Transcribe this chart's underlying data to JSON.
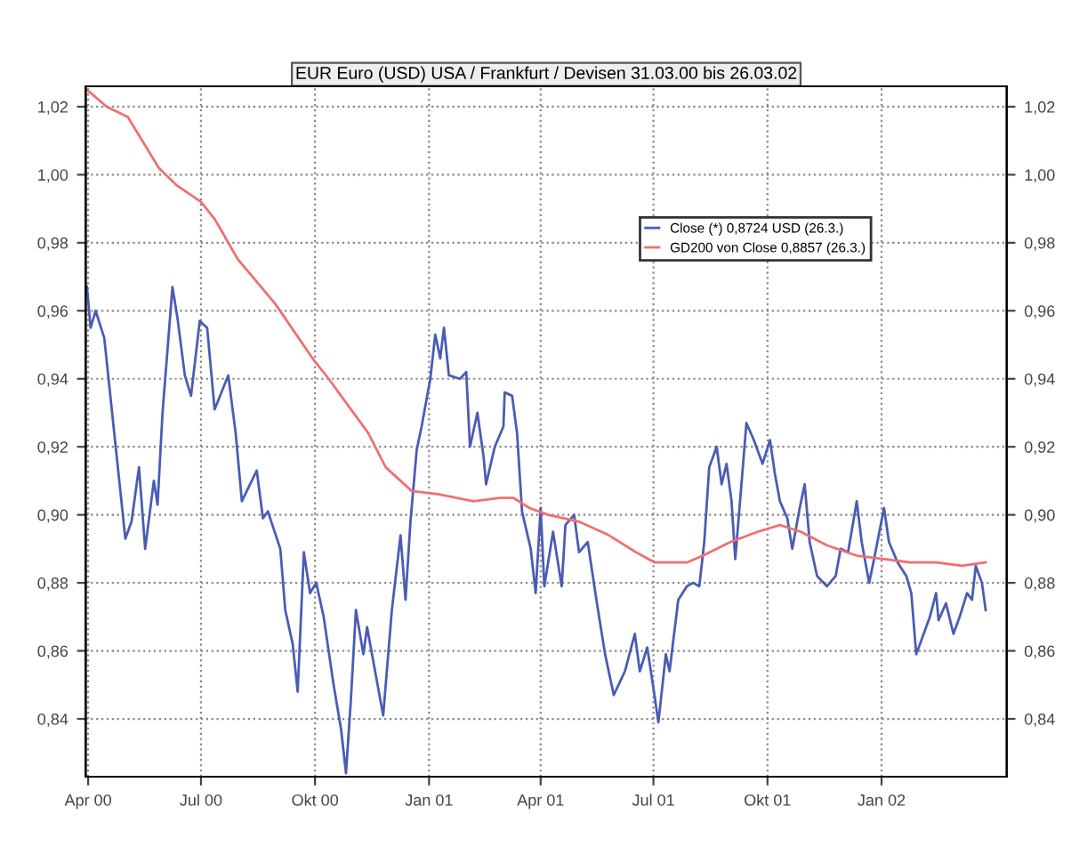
{
  "chart_data": {
    "type": "line",
    "title": "EUR Euro (USD) USA / Frankfurt / Devisen 31.03.00 bis 26.03.02",
    "xlim": [
      "2000-03-30",
      "2002-04-12"
    ],
    "xticks": [
      {
        "value": "2000-04-01",
        "label": "Apr 00"
      },
      {
        "value": "2000-07-01",
        "label": "Jul 00"
      },
      {
        "value": "2000-10-01",
        "label": "Okt 00"
      },
      {
        "value": "2001-01-01",
        "label": "Jan 01"
      },
      {
        "value": "2001-04-01",
        "label": "Apr 01"
      },
      {
        "value": "2001-07-01",
        "label": "Jul 01"
      },
      {
        "value": "2001-10-01",
        "label": "Okt 01"
      },
      {
        "value": "2002-01-01",
        "label": "Jan 02"
      }
    ],
    "ylim": [
      0.823,
      1.026
    ],
    "yticks": [
      {
        "value": 0.84,
        "label": "0,84"
      },
      {
        "value": 0.86,
        "label": "0,86"
      },
      {
        "value": 0.88,
        "label": "0,88"
      },
      {
        "value": 0.9,
        "label": "0,90"
      },
      {
        "value": 0.92,
        "label": "0,92"
      },
      {
        "value": 0.94,
        "label": "0,94"
      },
      {
        "value": 0.96,
        "label": "0,96"
      },
      {
        "value": 0.98,
        "label": "0,98"
      },
      {
        "value": 1.0,
        "label": "1,00"
      },
      {
        "value": 1.02,
        "label": "1,02"
      }
    ],
    "y2lim": [
      0.823,
      1.026
    ],
    "y2ticks": [
      {
        "value": 0.84,
        "label": "0,84"
      },
      {
        "value": 0.86,
        "label": "0,86"
      },
      {
        "value": 0.88,
        "label": "0,88"
      },
      {
        "value": 0.9,
        "label": "0,90"
      },
      {
        "value": 0.92,
        "label": "0,92"
      },
      {
        "value": 0.94,
        "label": "0,94"
      },
      {
        "value": 0.96,
        "label": "0,96"
      },
      {
        "value": 0.98,
        "label": "0,98"
      },
      {
        "value": 1.0,
        "label": "1,00"
      },
      {
        "value": 1.02,
        "label": "1,02"
      }
    ],
    "grid": true,
    "legend": "top right",
    "line_style": "solid",
    "series": [
      {
        "name": "Close (*) 0,8724 USD (26.3.)",
        "color": "#4a5cb4",
        "x": [
          "2000-03-31",
          "2000-04-03",
          "2000-04-07",
          "2000-04-14",
          "2000-05-01",
          "2000-05-06",
          "2000-05-12",
          "2000-05-17",
          "2000-05-24",
          "2000-05-27",
          "2000-05-31",
          "2000-06-08",
          "2000-06-12",
          "2000-06-18",
          "2000-06-23",
          "2000-06-30",
          "2000-07-06",
          "2000-07-12",
          "2000-07-23",
          "2000-07-29",
          "2000-08-03",
          "2000-08-15",
          "2000-08-20",
          "2000-08-24",
          "2000-09-03",
          "2000-09-07",
          "2000-09-13",
          "2000-09-17",
          "2000-09-22",
          "2000-09-27",
          "2000-10-02",
          "2000-10-08",
          "2000-10-16",
          "2000-10-22",
          "2000-10-26",
          "2000-10-30",
          "2000-11-03",
          "2000-11-09",
          "2000-11-12",
          "2000-11-16",
          "2000-11-25",
          "2000-12-02",
          "2000-12-09",
          "2000-12-13",
          "2000-12-17",
          "2000-12-22",
          "2000-12-26",
          "2001-01-02",
          "2001-01-06",
          "2001-01-10",
          "2001-01-13",
          "2001-01-17",
          "2001-01-26",
          "2001-01-31",
          "2001-02-03",
          "2001-02-09",
          "2001-02-14",
          "2001-02-16",
          "2001-02-23",
          "2001-03-02",
          "2001-03-03",
          "2001-03-09",
          "2001-03-13",
          "2001-03-17",
          "2001-03-24",
          "2001-03-28",
          "2001-04-01",
          "2001-04-04",
          "2001-04-11",
          "2001-04-18",
          "2001-04-21",
          "2001-04-28",
          "2001-05-02",
          "2001-05-09",
          "2001-05-16",
          "2001-05-23",
          "2001-05-30",
          "2001-06-08",
          "2001-06-16",
          "2001-06-20",
          "2001-06-26",
          "2001-07-01",
          "2001-07-05",
          "2001-07-11",
          "2001-07-14",
          "2001-07-21",
          "2001-07-28",
          "2001-08-02",
          "2001-08-07",
          "2001-08-11",
          "2001-08-15",
          "2001-08-21",
          "2001-08-25",
          "2001-08-29",
          "2001-09-02",
          "2001-09-05",
          "2001-09-10",
          "2001-09-14",
          "2001-09-20",
          "2001-09-27",
          "2001-10-03",
          "2001-10-07",
          "2001-10-11",
          "2001-10-17",
          "2001-10-21",
          "2001-10-27",
          "2001-10-31",
          "2001-11-04",
          "2001-11-10",
          "2001-11-18",
          "2001-11-25",
          "2001-11-29",
          "2001-12-05",
          "2001-12-12",
          "2001-12-16",
          "2001-12-22",
          "2001-12-26",
          "2002-01-03",
          "2002-01-07",
          "2002-01-14",
          "2002-01-21",
          "2002-01-25",
          "2002-01-29",
          "2002-02-04",
          "2002-02-09",
          "2002-02-14",
          "2002-02-16",
          "2002-02-22",
          "2002-02-28",
          "2002-03-05",
          "2002-03-11",
          "2002-03-15",
          "2002-03-18",
          "2002-03-23",
          "2002-03-26"
        ],
        "values": [
          0.967,
          0.955,
          0.96,
          0.952,
          0.893,
          0.898,
          0.914,
          0.89,
          0.91,
          0.903,
          0.93,
          0.967,
          0.958,
          0.941,
          0.935,
          0.957,
          0.955,
          0.931,
          0.941,
          0.924,
          0.904,
          0.913,
          0.899,
          0.901,
          0.89,
          0.872,
          0.862,
          0.848,
          0.889,
          0.877,
          0.88,
          0.87,
          0.85,
          0.837,
          0.824,
          0.846,
          0.872,
          0.859,
          0.867,
          0.859,
          0.841,
          0.872,
          0.894,
          0.875,
          0.898,
          0.919,
          0.926,
          0.94,
          0.953,
          0.946,
          0.955,
          0.941,
          0.94,
          0.942,
          0.92,
          0.93,
          0.917,
          0.909,
          0.92,
          0.926,
          0.936,
          0.935,
          0.924,
          0.901,
          0.89,
          0.877,
          0.902,
          0.879,
          0.895,
          0.879,
          0.897,
          0.9,
          0.889,
          0.892,
          0.875,
          0.859,
          0.847,
          0.854,
          0.865,
          0.854,
          0.861,
          0.849,
          0.839,
          0.859,
          0.854,
          0.875,
          0.879,
          0.88,
          0.879,
          0.892,
          0.914,
          0.92,
          0.909,
          0.915,
          0.904,
          0.887,
          0.909,
          0.927,
          0.922,
          0.915,
          0.922,
          0.912,
          0.904,
          0.899,
          0.89,
          0.902,
          0.909,
          0.892,
          0.882,
          0.879,
          0.882,
          0.89,
          0.889,
          0.904,
          0.892,
          0.88,
          0.887,
          0.902,
          0.892,
          0.886,
          0.882,
          0.877,
          0.859,
          0.865,
          0.87,
          0.877,
          0.869,
          0.874,
          0.865,
          0.87,
          0.877,
          0.875,
          0.885,
          0.88,
          0.872
        ]
      },
      {
        "name": "GD200 von Close 0,8857 (26.3.)",
        "color": "#f07070",
        "x": [
          "2000-03-31",
          "2000-04-16",
          "2000-05-03",
          "2000-05-28",
          "2000-06-11",
          "2000-07-01",
          "2000-07-12",
          "2000-07-31",
          "2000-08-30",
          "2000-09-29",
          "2000-10-12",
          "2000-11-13",
          "2000-11-27",
          "2000-12-18",
          "2001-01-09",
          "2001-02-06",
          "2001-02-27",
          "2001-03-10",
          "2001-03-23",
          "2001-04-07",
          "2001-05-02",
          "2001-05-26",
          "2001-06-17",
          "2001-07-02",
          "2001-07-28",
          "2001-08-10",
          "2001-09-01",
          "2001-09-23",
          "2001-10-11",
          "2001-10-28",
          "2001-11-18",
          "2001-12-12",
          "2002-01-03",
          "2002-01-24",
          "2002-02-14",
          "2002-03-07",
          "2002-03-26"
        ],
        "values": [
          1.025,
          1.02,
          1.017,
          1.002,
          0.997,
          0.992,
          0.987,
          0.975,
          0.962,
          0.946,
          0.94,
          0.924,
          0.914,
          0.907,
          0.906,
          0.904,
          0.905,
          0.905,
          0.902,
          0.9,
          0.898,
          0.894,
          0.889,
          0.886,
          0.886,
          0.888,
          0.892,
          0.895,
          0.897,
          0.895,
          0.891,
          0.888,
          0.887,
          0.886,
          0.886,
          0.885,
          0.886
        ]
      }
    ]
  }
}
